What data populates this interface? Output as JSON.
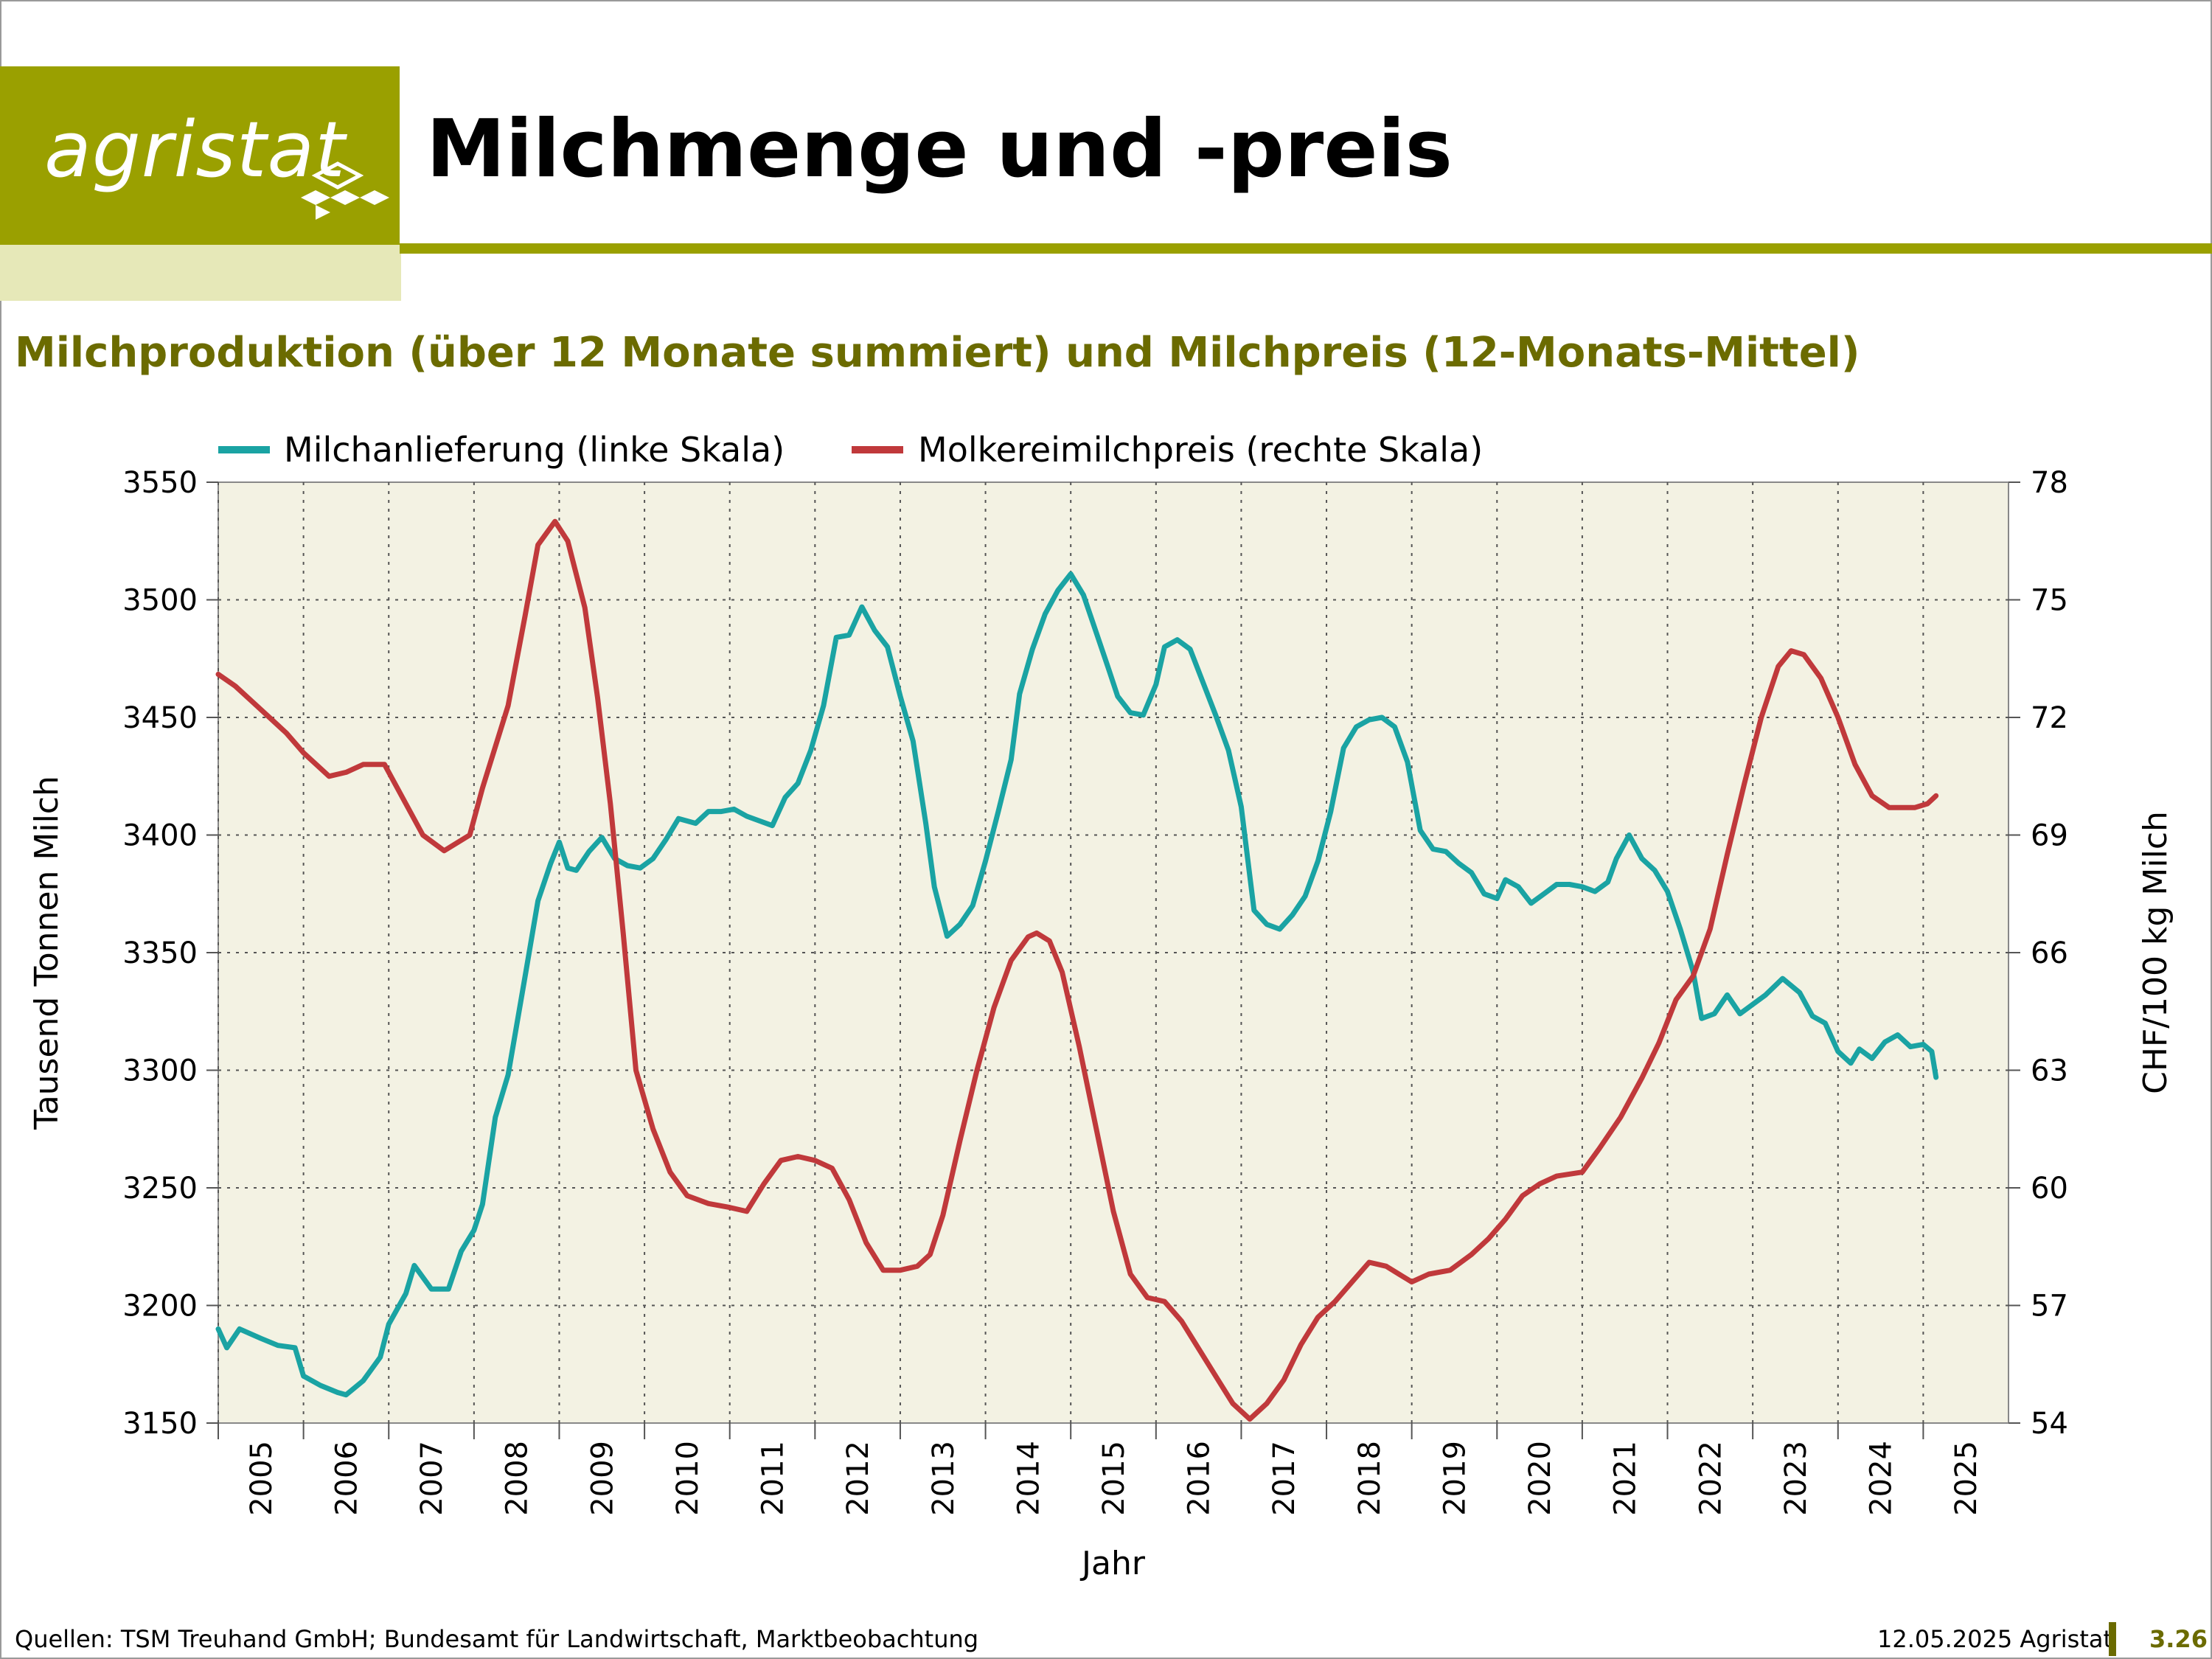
{
  "header": {
    "logo_text": "agristat",
    "title": "Milchmenge und -preis",
    "subtitle": "Milchproduktion (über 12 Monate summiert) und Milchpreis (12-Monats-Mittel)"
  },
  "colors": {
    "brand": "#9aa000",
    "brand_light": "#e6e8b8",
    "subtitle": "#6b6b00",
    "plot_bg": "#f3f2e3",
    "series_volume": "#1aa3a3",
    "series_price": "#c0393b"
  },
  "footer": {
    "source": "Quellen: TSM Treuhand GmbH; Bundesamt für Landwirtschaft, Marktbeobachtung",
    "date": "12.05.2025 Agristat",
    "page": "3.26"
  },
  "chart_data": {
    "type": "line",
    "xlabel": "Jahr",
    "ylabel_left": "Tausend Tonnen Milch",
    "ylabel_right": "CHF/100 kg Milch",
    "x_categories": [
      "2005",
      "2006",
      "2007",
      "2008",
      "2009",
      "2010",
      "2011",
      "2012",
      "2013",
      "2014",
      "2015",
      "2016",
      "2017",
      "2018",
      "2019",
      "2020",
      "2021",
      "2022",
      "2023",
      "2024",
      "2025"
    ],
    "ylim_left": [
      3150,
      3550
    ],
    "yticks_left": [
      "3150",
      "3200",
      "3250",
      "3300",
      "3350",
      "3400",
      "3450",
      "3500",
      "3550"
    ],
    "ylim_right": [
      54,
      78
    ],
    "yticks_right": [
      "54",
      "57",
      "60",
      "63",
      "66",
      "69",
      "72",
      "75",
      "78"
    ],
    "grid": true,
    "legend_position": "top",
    "series": [
      {
        "name": "Milchanlieferung (linke Skala)",
        "axis": "left",
        "points": [
          [
            2005.0,
            3190
          ],
          [
            2005.1,
            3182
          ],
          [
            2005.25,
            3190
          ],
          [
            2005.5,
            3186
          ],
          [
            2005.7,
            3183
          ],
          [
            2005.9,
            3182
          ],
          [
            2006.0,
            3170
          ],
          [
            2006.2,
            3166
          ],
          [
            2006.4,
            3163
          ],
          [
            2006.5,
            3162
          ],
          [
            2006.7,
            3168
          ],
          [
            2006.9,
            3178
          ],
          [
            2007.0,
            3192
          ],
          [
            2007.2,
            3205
          ],
          [
            2007.3,
            3217
          ],
          [
            2007.5,
            3207
          ],
          [
            2007.7,
            3207
          ],
          [
            2007.85,
            3223
          ],
          [
            2008.0,
            3232
          ],
          [
            2008.1,
            3243
          ],
          [
            2008.25,
            3280
          ],
          [
            2008.4,
            3298
          ],
          [
            2008.6,
            3340
          ],
          [
            2008.75,
            3372
          ],
          [
            2008.9,
            3388
          ],
          [
            2009.0,
            3397
          ],
          [
            2009.1,
            3386
          ],
          [
            2009.2,
            3385
          ],
          [
            2009.35,
            3393
          ],
          [
            2009.5,
            3399
          ],
          [
            2009.65,
            3390
          ],
          [
            2009.8,
            3387
          ],
          [
            2009.95,
            3386
          ],
          [
            2010.1,
            3390
          ],
          [
            2010.25,
            3398
          ],
          [
            2010.4,
            3407
          ],
          [
            2010.6,
            3405
          ],
          [
            2010.75,
            3410
          ],
          [
            2010.9,
            3410
          ],
          [
            2011.05,
            3411
          ],
          [
            2011.2,
            3408
          ],
          [
            2011.35,
            3406
          ],
          [
            2011.5,
            3404
          ],
          [
            2011.65,
            3416
          ],
          [
            2011.8,
            3422
          ],
          [
            2011.95,
            3436
          ],
          [
            2012.1,
            3455
          ],
          [
            2012.25,
            3484
          ],
          [
            2012.4,
            3485
          ],
          [
            2012.55,
            3497
          ],
          [
            2012.7,
            3487
          ],
          [
            2012.85,
            3480
          ],
          [
            2013.0,
            3459
          ],
          [
            2013.15,
            3440
          ],
          [
            2013.3,
            3405
          ],
          [
            2013.4,
            3378
          ],
          [
            2013.55,
            3357
          ],
          [
            2013.7,
            3362
          ],
          [
            2013.85,
            3370
          ],
          [
            2014.0,
            3389
          ],
          [
            2014.15,
            3410
          ],
          [
            2014.3,
            3432
          ],
          [
            2014.4,
            3460
          ],
          [
            2014.55,
            3479
          ],
          [
            2014.7,
            3494
          ],
          [
            2014.85,
            3504
          ],
          [
            2015.0,
            3511
          ],
          [
            2015.15,
            3502
          ],
          [
            2015.3,
            3486
          ],
          [
            2015.45,
            3470
          ],
          [
            2015.55,
            3459
          ],
          [
            2015.7,
            3452
          ],
          [
            2015.85,
            3451
          ],
          [
            2016.0,
            3464
          ],
          [
            2016.1,
            3480
          ],
          [
            2016.25,
            3483
          ],
          [
            2016.4,
            3479
          ],
          [
            2016.55,
            3465
          ],
          [
            2016.7,
            3451
          ],
          [
            2016.85,
            3436
          ],
          [
            2017.0,
            3412
          ],
          [
            2017.15,
            3368
          ],
          [
            2017.3,
            3362
          ],
          [
            2017.45,
            3360
          ],
          [
            2017.6,
            3366
          ],
          [
            2017.75,
            3374
          ],
          [
            2017.9,
            3389
          ],
          [
            2018.05,
            3410
          ],
          [
            2018.2,
            3437
          ],
          [
            2018.35,
            3446
          ],
          [
            2018.5,
            3449
          ],
          [
            2018.65,
            3450
          ],
          [
            2018.8,
            3446
          ],
          [
            2018.95,
            3431
          ],
          [
            2019.1,
            3402
          ],
          [
            2019.25,
            3394
          ],
          [
            2019.4,
            3393
          ],
          [
            2019.55,
            3388
          ],
          [
            2019.7,
            3384
          ],
          [
            2019.85,
            3375
          ],
          [
            2020.0,
            3373
          ],
          [
            2020.1,
            3381
          ],
          [
            2020.25,
            3378
          ],
          [
            2020.4,
            3371
          ],
          [
            2020.55,
            3375
          ],
          [
            2020.7,
            3379
          ],
          [
            2020.85,
            3379
          ],
          [
            2021.0,
            3378
          ],
          [
            2021.15,
            3376
          ],
          [
            2021.3,
            3380
          ],
          [
            2021.4,
            3390
          ],
          [
            2021.55,
            3400
          ],
          [
            2021.7,
            3390
          ],
          [
            2021.85,
            3385
          ],
          [
            2022.0,
            3376
          ],
          [
            2022.15,
            3360
          ],
          [
            2022.3,
            3342
          ],
          [
            2022.4,
            3322
          ],
          [
            2022.55,
            3324
          ],
          [
            2022.7,
            3332
          ],
          [
            2022.85,
            3324
          ],
          [
            2023.0,
            3328
          ],
          [
            2023.15,
            3332
          ],
          [
            2023.35,
            3339
          ],
          [
            2023.55,
            3333
          ],
          [
            2023.7,
            3323
          ],
          [
            2023.85,
            3320
          ],
          [
            2024.0,
            3308
          ],
          [
            2024.15,
            3303
          ],
          [
            2024.25,
            3309
          ],
          [
            2024.4,
            3305
          ],
          [
            2024.55,
            3312
          ],
          [
            2024.7,
            3315
          ],
          [
            2024.85,
            3310
          ],
          [
            2025.0,
            3311
          ],
          [
            2025.1,
            3308
          ],
          [
            2025.15,
            3297
          ]
        ]
      },
      {
        "name": "Molkereimilchpreis (rechte Skala)",
        "axis": "right",
        "points": [
          [
            2005.0,
            73.1
          ],
          [
            2005.2,
            72.8
          ],
          [
            2005.4,
            72.4
          ],
          [
            2005.6,
            72.0
          ],
          [
            2005.8,
            71.6
          ],
          [
            2006.0,
            71.1
          ],
          [
            2006.3,
            70.5
          ],
          [
            2006.5,
            70.6
          ],
          [
            2006.7,
            70.8
          ],
          [
            2006.95,
            70.8
          ],
          [
            2007.2,
            69.8
          ],
          [
            2007.4,
            69.0
          ],
          [
            2007.65,
            68.6
          ],
          [
            2007.95,
            69.0
          ],
          [
            2008.1,
            70.2
          ],
          [
            2008.4,
            72.3
          ],
          [
            2008.6,
            74.6
          ],
          [
            2008.75,
            76.4
          ],
          [
            2008.95,
            77.0
          ],
          [
            2009.1,
            76.5
          ],
          [
            2009.3,
            74.8
          ],
          [
            2009.45,
            72.5
          ],
          [
            2009.6,
            69.8
          ],
          [
            2009.75,
            66.5
          ],
          [
            2009.9,
            63.0
          ],
          [
            2010.1,
            61.5
          ],
          [
            2010.3,
            60.4
          ],
          [
            2010.5,
            59.8
          ],
          [
            2010.75,
            59.6
          ],
          [
            2011.0,
            59.5
          ],
          [
            2011.2,
            59.4
          ],
          [
            2011.4,
            60.1
          ],
          [
            2011.6,
            60.7
          ],
          [
            2011.8,
            60.8
          ],
          [
            2012.0,
            60.7
          ],
          [
            2012.2,
            60.5
          ],
          [
            2012.4,
            59.7
          ],
          [
            2012.6,
            58.6
          ],
          [
            2012.8,
            57.9
          ],
          [
            2013.0,
            57.9
          ],
          [
            2013.2,
            58.0
          ],
          [
            2013.35,
            58.3
          ],
          [
            2013.5,
            59.3
          ],
          [
            2013.7,
            61.2
          ],
          [
            2013.9,
            63.0
          ],
          [
            2014.1,
            64.6
          ],
          [
            2014.3,
            65.8
          ],
          [
            2014.5,
            66.4
          ],
          [
            2014.6,
            66.5
          ],
          [
            2014.75,
            66.3
          ],
          [
            2014.9,
            65.5
          ],
          [
            2015.1,
            63.6
          ],
          [
            2015.3,
            61.5
          ],
          [
            2015.5,
            59.4
          ],
          [
            2015.7,
            57.8
          ],
          [
            2015.9,
            57.2
          ],
          [
            2016.1,
            57.1
          ],
          [
            2016.3,
            56.6
          ],
          [
            2016.5,
            55.9
          ],
          [
            2016.7,
            55.2
          ],
          [
            2016.9,
            54.5
          ],
          [
            2017.1,
            54.1
          ],
          [
            2017.3,
            54.5
          ],
          [
            2017.5,
            55.1
          ],
          [
            2017.7,
            56.0
          ],
          [
            2017.9,
            56.7
          ],
          [
            2018.1,
            57.1
          ],
          [
            2018.3,
            57.6
          ],
          [
            2018.5,
            58.1
          ],
          [
            2018.7,
            58.0
          ],
          [
            2018.85,
            57.8
          ],
          [
            2019.0,
            57.6
          ],
          [
            2019.2,
            57.8
          ],
          [
            2019.45,
            57.9
          ],
          [
            2019.7,
            58.3
          ],
          [
            2019.9,
            58.7
          ],
          [
            2020.1,
            59.2
          ],
          [
            2020.3,
            59.8
          ],
          [
            2020.5,
            60.1
          ],
          [
            2020.7,
            60.3
          ],
          [
            2021.0,
            60.4
          ],
          [
            2021.2,
            61.0
          ],
          [
            2021.45,
            61.8
          ],
          [
            2021.7,
            62.8
          ],
          [
            2021.9,
            63.7
          ],
          [
            2022.1,
            64.8
          ],
          [
            2022.3,
            65.4
          ],
          [
            2022.5,
            66.6
          ],
          [
            2022.7,
            68.5
          ],
          [
            2022.9,
            70.3
          ],
          [
            2023.1,
            72.0
          ],
          [
            2023.3,
            73.3
          ],
          [
            2023.45,
            73.7
          ],
          [
            2023.6,
            73.6
          ],
          [
            2023.8,
            73.0
          ],
          [
            2024.0,
            72.0
          ],
          [
            2024.2,
            70.8
          ],
          [
            2024.4,
            70.0
          ],
          [
            2024.6,
            69.7
          ],
          [
            2024.75,
            69.7
          ],
          [
            2024.9,
            69.7
          ],
          [
            2025.05,
            69.8
          ],
          [
            2025.15,
            70.0
          ]
        ]
      }
    ]
  }
}
